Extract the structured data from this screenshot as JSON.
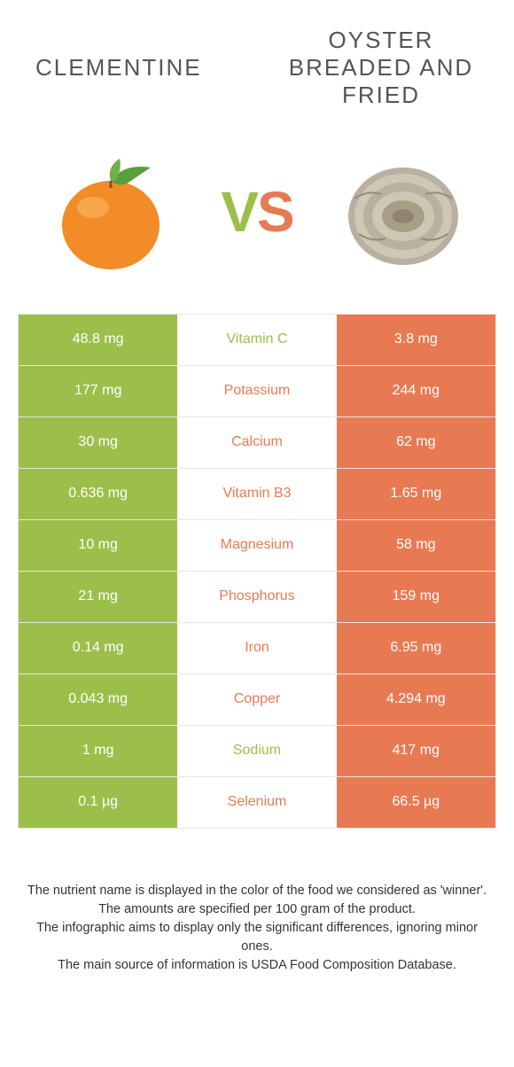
{
  "colors": {
    "left": "#9cbf4b",
    "right": "#e87a53",
    "border": "#e5e5e5",
    "text": "#333333",
    "title": "#555555"
  },
  "header": {
    "left_title": "Clementine",
    "right_title": "Oyster breaded and fried"
  },
  "vs": {
    "v": "V",
    "s": "S"
  },
  "rows": [
    {
      "left": "48.8 mg",
      "label": "Vitamin C",
      "right": "3.8 mg",
      "winner": "left"
    },
    {
      "left": "177 mg",
      "label": "Potassium",
      "right": "244 mg",
      "winner": "right"
    },
    {
      "left": "30 mg",
      "label": "Calcium",
      "right": "62 mg",
      "winner": "right"
    },
    {
      "left": "0.636 mg",
      "label": "Vitamin B3",
      "right": "1.65 mg",
      "winner": "right"
    },
    {
      "left": "10 mg",
      "label": "Magnesium",
      "right": "58 mg",
      "winner": "right"
    },
    {
      "left": "21 mg",
      "label": "Phosphorus",
      "right": "159 mg",
      "winner": "right"
    },
    {
      "left": "0.14 mg",
      "label": "Iron",
      "right": "6.95 mg",
      "winner": "right"
    },
    {
      "left": "0.043 mg",
      "label": "Copper",
      "right": "4.294 mg",
      "winner": "right"
    },
    {
      "left": "1 mg",
      "label": "Sodium",
      "right": "417 mg",
      "winner": "left"
    },
    {
      "left": "0.1 µg",
      "label": "Selenium",
      "right": "66.5 µg",
      "winner": "right"
    }
  ],
  "footer": {
    "line1": "The nutrient name is displayed in the color of the food we considered as 'winner'.",
    "line2": "The amounts are specified per 100 gram of the product.",
    "line3": "The infographic aims to display only the significant differences, ignoring minor ones.",
    "line4": "The main source of information is USDA Food Composition Database."
  }
}
